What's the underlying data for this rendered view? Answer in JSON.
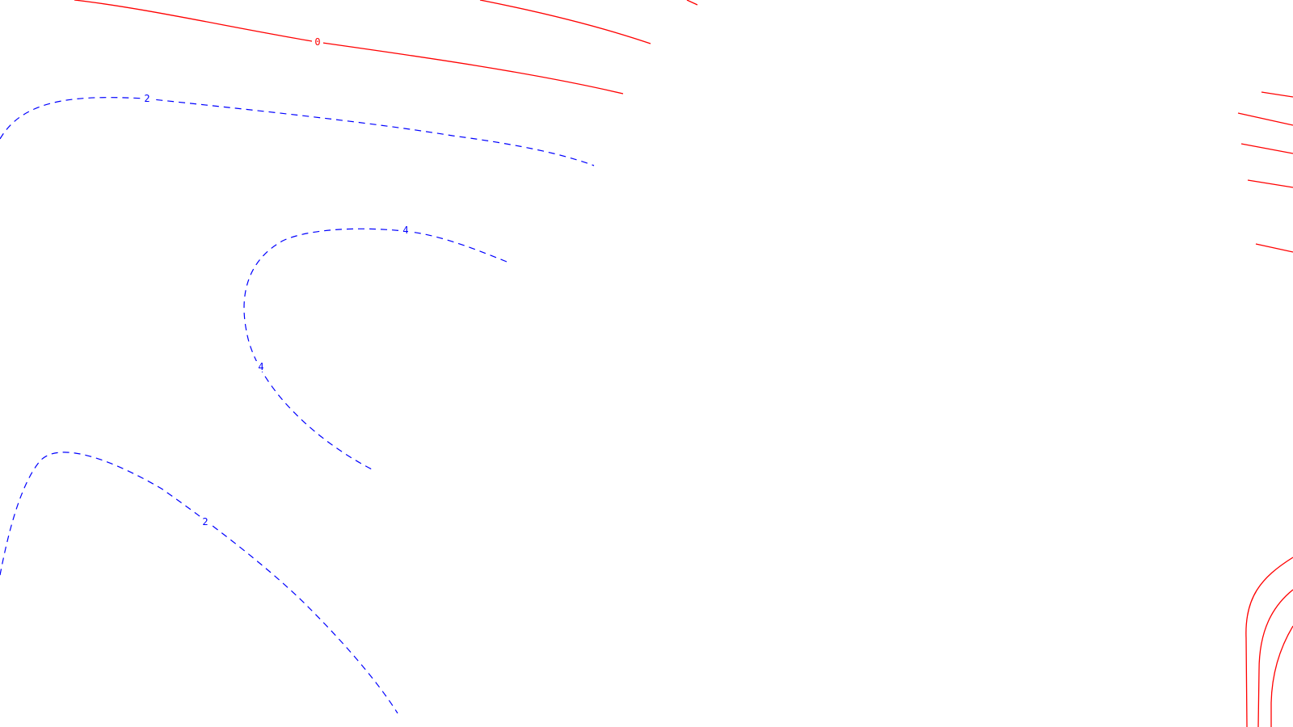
{
  "map": {
    "background_color": "#ffffff",
    "positive_style": {
      "color": "#ff0000",
      "line": "solid"
    },
    "negative_style": {
      "color": "#0000ff",
      "line": "dashed"
    }
  },
  "contour_labels": {
    "zero_label": "0",
    "two_upper": "2",
    "four_upper": "4",
    "four_lower": "4",
    "two_lower": "2"
  }
}
